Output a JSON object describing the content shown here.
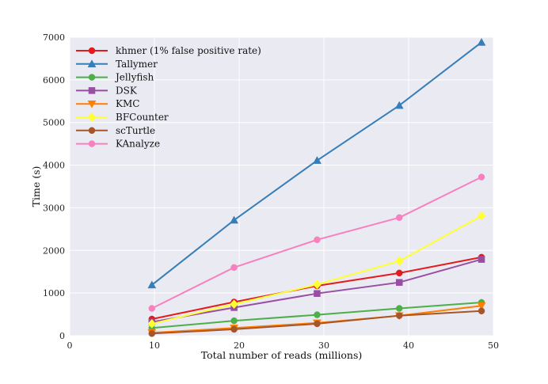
{
  "chart_data": {
    "type": "line",
    "title": "",
    "xlabel": "Total number of reads (millions)",
    "ylabel": "Time (s)",
    "xlim": [
      0,
      50
    ],
    "ylim": [
      0,
      7000
    ],
    "xticks": [
      0,
      10,
      20,
      30,
      40,
      50
    ],
    "yticks": [
      0,
      1000,
      2000,
      3000,
      4000,
      5000,
      6000,
      7000
    ],
    "grid": true,
    "legend_position": "top-left",
    "x": [
      9.7,
      19.4,
      29.2,
      38.9,
      48.6
    ],
    "series": [
      {
        "name": "khmer (1% false positive rate)",
        "color": "#e41a1c",
        "marker": "circle",
        "values": [
          390,
          790,
          1170,
          1470,
          1840
        ]
      },
      {
        "name": "Tallymer",
        "color": "#377eb8",
        "marker": "triangle-up",
        "values": [
          1190,
          2710,
          4110,
          5400,
          6880
        ]
      },
      {
        "name": "Jellyfish",
        "color": "#4daf4a",
        "marker": "circle",
        "values": [
          180,
          350,
          490,
          640,
          780
        ]
      },
      {
        "name": "DSK",
        "color": "#984ea3",
        "marker": "square",
        "values": [
          320,
          660,
          990,
          1250,
          1790
        ]
      },
      {
        "name": "KMC",
        "color": "#ff7f00",
        "marker": "triangle-down",
        "values": [
          70,
          180,
          300,
          470,
          700
        ]
      },
      {
        "name": "BFCounter",
        "color": "#ffff33",
        "marker": "diamond",
        "values": [
          280,
          740,
          1200,
          1750,
          2810
        ]
      },
      {
        "name": "scTurtle",
        "color": "#a65628",
        "marker": "circle",
        "values": [
          50,
          150,
          280,
          470,
          580
        ]
      },
      {
        "name": "KAnalyze",
        "color": "#f781bf",
        "marker": "circle",
        "values": [
          640,
          1600,
          2250,
          2770,
          3720
        ]
      }
    ]
  }
}
